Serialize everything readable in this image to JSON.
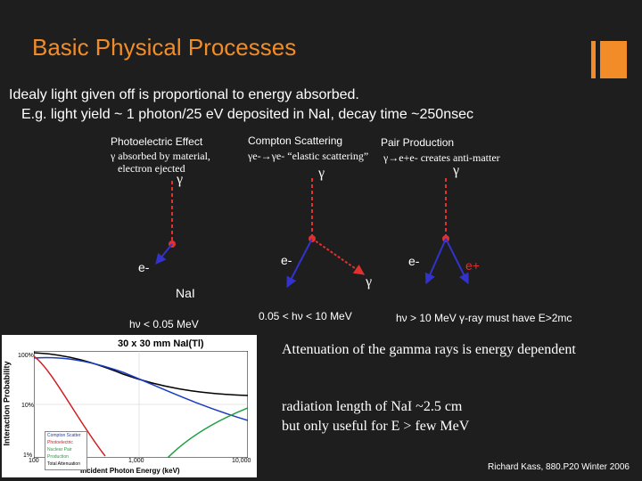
{
  "slide": {
    "title": "Basic Physical Processes",
    "intro_line1": "Idealy light given off is proportional to energy absorbed.",
    "intro_line2": "E.g. light yield ~ 1 photon/25 eV deposited in NaI, decay time ~250nsec"
  },
  "photoelectric": {
    "heading": "Photoelectric Effect",
    "desc1": "γ absorbed by material,",
    "desc2": "electron ejected",
    "gamma": "γ",
    "electron": "e-",
    "material": "NaI",
    "range": "hν < 0.05 MeV"
  },
  "compton": {
    "heading": "Compton Scattering",
    "desc": "γe-→γe- “elastic scattering”",
    "gamma_in": "γ",
    "electron": "e-",
    "gamma_out": "γ",
    "range": "0.05 < hν < 10 MeV"
  },
  "pair": {
    "heading": "Pair Production",
    "desc": "γ→e+e- creates anti-matter",
    "gamma": "γ",
    "electron": "e-",
    "positron": "e+",
    "range": "hν > 10 MeV γ-ray must have E>2mc"
  },
  "plot": {
    "title": "30 x 30 mm NaI(Tl)",
    "ylabel": "Interaction Probability",
    "xlabel": "Incident Photon Energy (keV)",
    "yticks": [
      "100%",
      "10%",
      "1%"
    ],
    "xticks": [
      "100",
      "1,000",
      "10,000"
    ],
    "legend": [
      "Compton Scatter",
      "Photoelectric",
      "Nuclear Pair Production",
      "Total Attenuation"
    ]
  },
  "notes": {
    "attenuation": "Attenuation of the gamma rays is energy dependent",
    "radlen1": "radiation length of NaI ~2.5 cm",
    "radlen2": "but only useful for E > few MeV"
  },
  "footer": "Richard Kass, 880.P20 Winter 2006",
  "colors": {
    "accent": "#f28c28",
    "arrow": "#e03030",
    "electron_line": "#3333cc",
    "background": "#1e1e1e"
  }
}
